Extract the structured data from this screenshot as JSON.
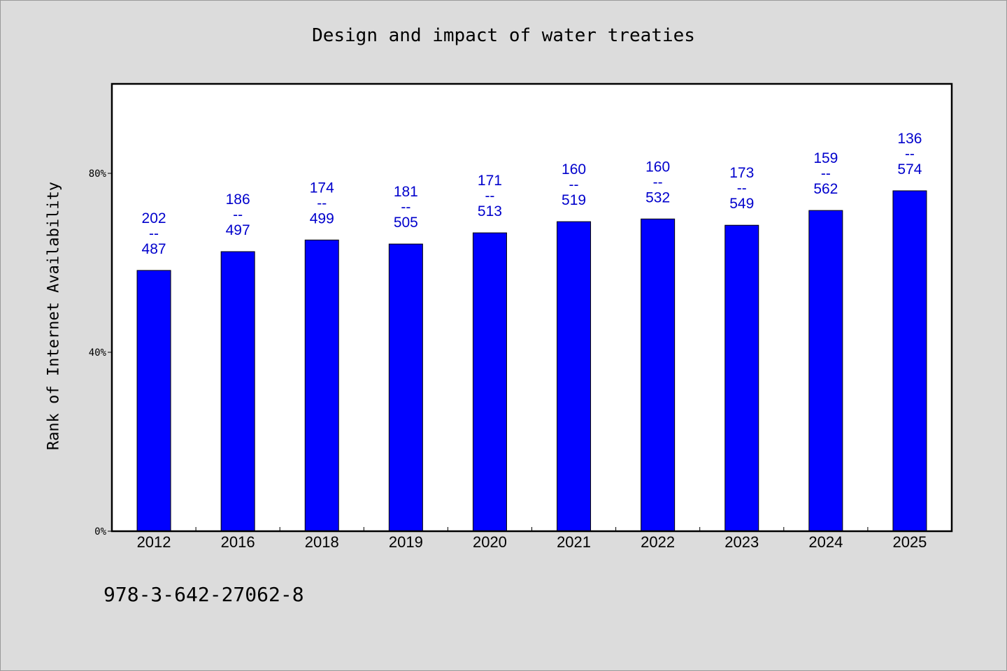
{
  "chart_data": {
    "type": "bar",
    "title": "Design and impact of water treaties",
    "xlabel": "",
    "ylabel": "Rank of Internet Availability",
    "ylim": [
      0,
      100
    ],
    "y_ticks": [
      {
        "value": 0,
        "label": "0%"
      },
      {
        "value": 40,
        "label": "40%"
      },
      {
        "value": 80,
        "label": "80%"
      }
    ],
    "categories": [
      "2012",
      "2016",
      "2018",
      "2019",
      "2020",
      "2021",
      "2022",
      "2023",
      "2024",
      "2025"
    ],
    "series": [
      {
        "values": [
          58.3,
          62.5,
          65.1,
          64.2,
          66.7,
          69.2,
          69.8,
          68.4,
          71.7,
          76.1
        ],
        "color": "#0000ff"
      }
    ],
    "data_labels": [
      {
        "top": "202",
        "sep": "--",
        "bottom": "487"
      },
      {
        "top": "186",
        "sep": "--",
        "bottom": "497"
      },
      {
        "top": "174",
        "sep": "--",
        "bottom": "499"
      },
      {
        "top": "181",
        "sep": "--",
        "bottom": "505"
      },
      {
        "top": "171",
        "sep": "--",
        "bottom": "513"
      },
      {
        "top": "160",
        "sep": "--",
        "bottom": "519"
      },
      {
        "top": "160",
        "sep": "--",
        "bottom": "532"
      },
      {
        "top": "173",
        "sep": "--",
        "bottom": "549"
      },
      {
        "top": "159",
        "sep": "--",
        "bottom": "562"
      },
      {
        "top": "136",
        "sep": "--",
        "bottom": "574"
      }
    ],
    "label_color": "#0000cc",
    "grid": false
  },
  "footnote": "978-3-642-27062-8"
}
